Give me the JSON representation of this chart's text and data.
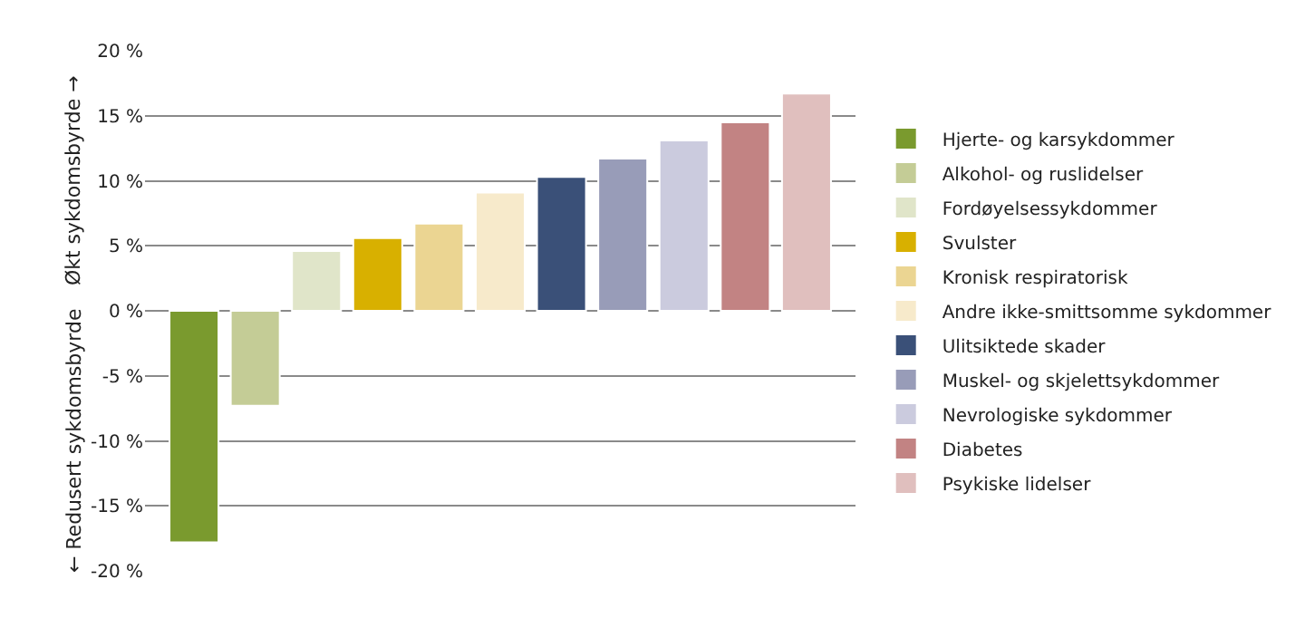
{
  "chart_data": {
    "type": "bar",
    "categories": [
      null,
      null,
      null,
      null,
      null,
      null,
      null,
      null,
      null,
      null,
      null
    ],
    "series": [
      {
        "name": "Hjerte- og karsykdommer",
        "color": "#7a9a2e",
        "values": [
          -17.8,
          null,
          null,
          null,
          null,
          null,
          null,
          null,
          null,
          null,
          null
        ]
      },
      {
        "name": "Alkohol- og ruslidelser",
        "color": "#c4cc96",
        "values": [
          null,
          -7.3,
          null,
          null,
          null,
          null,
          null,
          null,
          null,
          null,
          null
        ]
      },
      {
        "name": "Fordøyelsessykdommer",
        "color": "#e0e5c9",
        "values": [
          null,
          null,
          4.6,
          null,
          null,
          null,
          null,
          null,
          null,
          null,
          null
        ]
      },
      {
        "name": "Svulster",
        "color": "#d8b000",
        "values": [
          null,
          null,
          null,
          5.6,
          null,
          null,
          null,
          null,
          null,
          null,
          null
        ]
      },
      {
        "name": "Kronisk respiratorisk",
        "color": "#ebd592",
        "values": [
          null,
          null,
          null,
          null,
          6.7,
          null,
          null,
          null,
          null,
          null,
          null
        ]
      },
      {
        "name": "Andre ikke-smittsomme sykdommer",
        "color": "#f7eacb",
        "values": [
          null,
          null,
          null,
          null,
          null,
          9.1,
          null,
          null,
          null,
          null,
          null
        ]
      },
      {
        "name": "Ulitsiktede skader",
        "color": "#3a5078",
        "values": [
          null,
          null,
          null,
          null,
          null,
          null,
          10.3,
          null,
          null,
          null,
          null
        ]
      },
      {
        "name": "Muskel- og skjelettsykdommer",
        "color": "#989cb8",
        "values": [
          null,
          null,
          null,
          null,
          null,
          null,
          null,
          11.7,
          null,
          null,
          null
        ]
      },
      {
        "name": "Nevrologiske sykdommer",
        "color": "#cbcbde",
        "values": [
          null,
          null,
          null,
          null,
          null,
          null,
          null,
          null,
          13.1,
          null,
          null
        ]
      },
      {
        "name": "Diabetes",
        "color": "#c28383",
        "values": [
          null,
          null,
          null,
          null,
          null,
          null,
          null,
          null,
          null,
          14.5,
          null
        ]
      },
      {
        "name": "Psykiske lidelser",
        "color": "#e0bfbe",
        "values": [
          null,
          null,
          null,
          null,
          null,
          null,
          null,
          null,
          null,
          null,
          16.7
        ]
      }
    ],
    "annotations": [
      "Økt sykdomsbyrde →",
      "← Redusert sykdomsbyrde"
    ],
    "ylim": [
      -20,
      20
    ],
    "yticks": [
      {
        "value": -20,
        "label": "-20 %"
      },
      {
        "value": -15,
        "label": "-15 %"
      },
      {
        "value": -10,
        "label": "-10 %"
      },
      {
        "value": -5,
        "label": "-5 %"
      },
      {
        "value": 0,
        "label": "0 %"
      },
      {
        "value": 5,
        "label": "5 %"
      },
      {
        "value": 10,
        "label": "10 %"
      },
      {
        "value": 15,
        "label": "15 %"
      },
      {
        "value": 20,
        "label": "20 %"
      }
    ],
    "grid": "y",
    "legend": "right"
  }
}
